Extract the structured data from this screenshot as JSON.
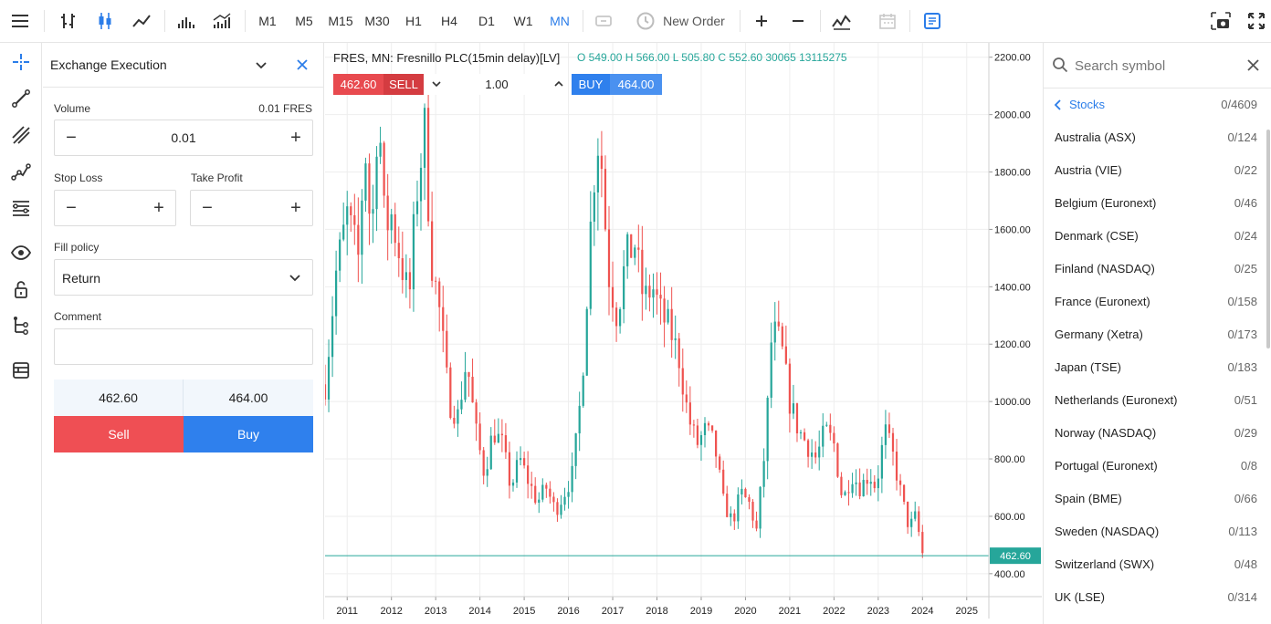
{
  "toolbar": {
    "timeframes": [
      "M1",
      "M5",
      "M15",
      "M30",
      "H1",
      "H4",
      "D1",
      "W1",
      "MN"
    ],
    "active_timeframe": "MN",
    "new_order_label": "New Order"
  },
  "order_panel": {
    "title": "Exchange Execution",
    "volume_label": "Volume",
    "volume_hint": "0.01 FRES",
    "volume_value": "0.01",
    "stop_loss_label": "Stop Loss",
    "take_profit_label": "Take Profit",
    "stop_loss_value": "",
    "take_profit_value": "",
    "fill_policy_label": "Fill policy",
    "fill_policy_value": "Return",
    "comment_label": "Comment",
    "comment_value": "",
    "sell_price": "462.60",
    "buy_price": "464.00",
    "sell_label": "Sell",
    "buy_label": "Buy"
  },
  "chart": {
    "symbol_title": "FRES, MN: Fresnillo PLC(15min delay)[LV]",
    "ohlc": "O 549.00  H 566.00  L 505.80  C 552.60  30065  13115275",
    "quick_trade": {
      "sell_price": "462.60",
      "sell_label": "SELL",
      "volume": "1.00",
      "buy_label": "BUY",
      "buy_price": "464.00"
    },
    "current_price": "462.60",
    "colors": {
      "up": "#26a69a",
      "down": "#ef5350",
      "price_line": "#26a69a"
    }
  },
  "chart_data": {
    "type": "candlestick",
    "title": "FRES, MN: Fresnillo PLC(15min delay)[LV]",
    "x_ticks": [
      "2011",
      "2012",
      "2013",
      "2014",
      "2015",
      "2016",
      "2017",
      "2018",
      "2019",
      "2020",
      "2021",
      "2022",
      "2023",
      "2024",
      "2025"
    ],
    "y_ticks": [
      "2200.00",
      "2000.00",
      "1800.00",
      "1600.00",
      "1400.00",
      "1200.00",
      "1000.00",
      "800.00",
      "600.00",
      "400.00"
    ],
    "ylim": [
      320,
      2250
    ],
    "xlim": [
      2010.5,
      2025.5
    ],
    "last_price": 462.6,
    "grid": true,
    "close_path": [
      [
        2010.5,
        1060
      ],
      [
        2010.75,
        1450
      ],
      [
        2011.0,
        1650
      ],
      [
        2011.25,
        1500
      ],
      [
        2011.4,
        1900
      ],
      [
        2011.55,
        1550
      ],
      [
        2011.7,
        2050
      ],
      [
        2011.85,
        1600
      ],
      [
        2012.0,
        1650
      ],
      [
        2012.2,
        1500
      ],
      [
        2012.4,
        1350
      ],
      [
        2012.55,
        1700
      ],
      [
        2012.75,
        1950
      ],
      [
        2012.9,
        1500
      ],
      [
        2013.1,
        1300
      ],
      [
        2013.3,
        1000
      ],
      [
        2013.5,
        950
      ],
      [
        2013.7,
        1150
      ],
      [
        2013.9,
        900
      ],
      [
        2014.1,
        750
      ],
      [
        2014.3,
        900
      ],
      [
        2014.5,
        850
      ],
      [
        2014.7,
        700
      ],
      [
        2014.9,
        800
      ],
      [
        2015.1,
        720
      ],
      [
        2015.3,
        650
      ],
      [
        2015.5,
        700
      ],
      [
        2015.7,
        620
      ],
      [
        2015.9,
        680
      ],
      [
        2016.1,
        750
      ],
      [
        2016.3,
        1050
      ],
      [
        2016.55,
        1750
      ],
      [
        2016.7,
        1950
      ],
      [
        2016.9,
        1450
      ],
      [
        2017.1,
        1300
      ],
      [
        2017.3,
        1500
      ],
      [
        2017.5,
        1550
      ],
      [
        2017.7,
        1350
      ],
      [
        2017.9,
        1400
      ],
      [
        2018.1,
        1300
      ],
      [
        2018.3,
        1250
      ],
      [
        2018.5,
        1150
      ],
      [
        2018.7,
        950
      ],
      [
        2018.9,
        850
      ],
      [
        2019.1,
        900
      ],
      [
        2019.3,
        850
      ],
      [
        2019.5,
        650
      ],
      [
        2019.7,
        580
      ],
      [
        2019.9,
        680
      ],
      [
        2020.1,
        640
      ],
      [
        2020.25,
        550
      ],
      [
        2020.45,
        850
      ],
      [
        2020.6,
        1250
      ],
      [
        2020.8,
        1200
      ],
      [
        2021.0,
        1000
      ],
      [
        2021.2,
        900
      ],
      [
        2021.4,
        850
      ],
      [
        2021.6,
        800
      ],
      [
        2021.8,
        900
      ],
      [
        2022.0,
        850
      ],
      [
        2022.2,
        650
      ],
      [
        2022.4,
        750
      ],
      [
        2022.6,
        700
      ],
      [
        2022.8,
        750
      ],
      [
        2022.95,
        700
      ],
      [
        2023.15,
        900
      ],
      [
        2023.35,
        800
      ],
      [
        2023.55,
        650
      ],
      [
        2023.7,
        560
      ],
      [
        2023.85,
        600
      ],
      [
        2024.0,
        470
      ]
    ]
  },
  "symbols": {
    "search_placeholder": "Search symbol",
    "category": "Stocks",
    "category_count": "0/4609",
    "items": [
      {
        "name": "Australia (ASX)",
        "count": "0/124"
      },
      {
        "name": "Austria (VIE)",
        "count": "0/22"
      },
      {
        "name": "Belgium (Euronext)",
        "count": "0/46"
      },
      {
        "name": "Denmark (CSE)",
        "count": "0/24"
      },
      {
        "name": "Finland (NASDAQ)",
        "count": "0/25"
      },
      {
        "name": "France (Euronext)",
        "count": "0/158"
      },
      {
        "name": "Germany (Xetra)",
        "count": "0/173"
      },
      {
        "name": "Japan (TSE)",
        "count": "0/183"
      },
      {
        "name": "Netherlands (Euronext)",
        "count": "0/51"
      },
      {
        "name": "Norway (NASDAQ)",
        "count": "0/29"
      },
      {
        "name": "Portugal (Euronext)",
        "count": "0/8"
      },
      {
        "name": "Spain (BME)",
        "count": "0/66"
      },
      {
        "name": "Sweden (NASDAQ)",
        "count": "0/113"
      },
      {
        "name": "Switzerland (SWX)",
        "count": "0/48"
      },
      {
        "name": "UK (LSE)",
        "count": "0/314"
      }
    ]
  },
  "icons": {
    "left_tools": [
      "crosshair-icon",
      "trend-line-icon",
      "parallel-channel-icon",
      "polyline-icon",
      "fibonacci-icon",
      "eye-icon",
      "lock-icon",
      "object-tree-icon",
      "layers-icon"
    ]
  }
}
